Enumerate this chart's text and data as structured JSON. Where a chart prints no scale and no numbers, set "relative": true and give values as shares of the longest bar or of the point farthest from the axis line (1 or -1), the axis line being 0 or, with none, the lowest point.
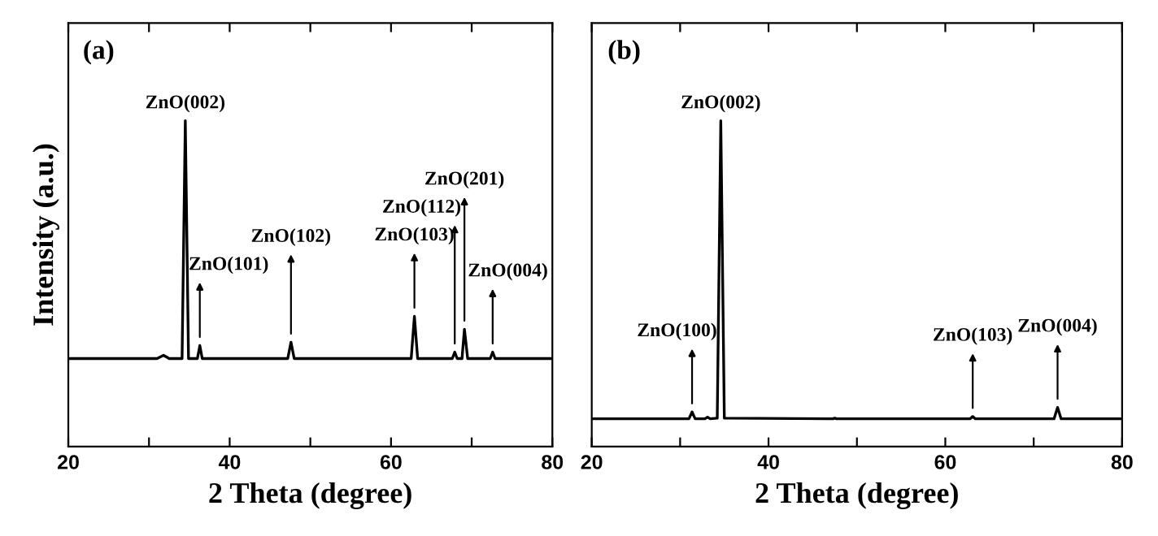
{
  "chart_data": [
    {
      "type": "line",
      "title": "(a)",
      "xlabel": "2 Theta (degree)",
      "ylabel": "Intensity (a.u.)",
      "relative": true,
      "tick_labels": "x",
      "xlim": [
        20,
        80
      ],
      "xticks": [
        20,
        {
          "value": 30,
          "label": null
        },
        40,
        {
          "value": 50,
          "label": null
        },
        60,
        {
          "value": 70,
          "label": null
        },
        80
      ],
      "x": [
        20,
        31,
        31.8,
        32.5,
        34.1,
        34.5,
        34.9,
        36.0,
        36.3,
        36.6,
        47.2,
        47.6,
        48.0,
        62.5,
        62.9,
        63.3,
        67.6,
        67.9,
        68.2,
        68.8,
        69.1,
        69.5,
        72.3,
        72.6,
        72.9,
        80
      ],
      "series": [
        {
          "color": "#000000",
          "values": [
            0.27,
            0.27,
            0.28,
            0.27,
            0.27,
            1.0,
            0.27,
            0.27,
            0.31,
            0.27,
            0.27,
            0.32,
            0.27,
            0.27,
            0.4,
            0.27,
            0.27,
            0.29,
            0.27,
            0.27,
            0.36,
            0.27,
            0.27,
            0.29,
            0.27,
            0.27
          ]
        }
      ],
      "annotations": [
        {
          "text": "ZnO(002)",
          "x": 34.5,
          "y": 1.0
        },
        {
          "text": "ZnO(101)",
          "x": 36.3,
          "y": 0.31
        },
        {
          "text": "ZnO(102)",
          "x": 47.6,
          "y": 0.32
        },
        {
          "text": "ZnO(103)",
          "x": 62.9,
          "y": 0.4
        },
        {
          "text": "ZnO(112)",
          "x": 67.9,
          "y": 0.29
        },
        {
          "text": "ZnO(201)",
          "x": 69.1,
          "y": 0.36
        },
        {
          "text": "ZnO(004)",
          "x": 72.6,
          "y": 0.29
        }
      ]
    },
    {
      "type": "line",
      "title": "(b)",
      "xlabel": "2 Theta (degree)",
      "relative": true,
      "tick_labels": "x",
      "xlim": [
        20,
        80
      ],
      "xticks": [
        20,
        {
          "value": 30,
          "label": null
        },
        40,
        {
          "value": 50,
          "label": null
        },
        60,
        {
          "value": 70,
          "label": null
        },
        80
      ],
      "x": [
        20,
        31.0,
        31.35,
        31.7,
        32.8,
        33.1,
        33.4,
        34.2,
        34.6,
        35.0,
        47.3,
        47.5,
        47.7,
        62.8,
        63.1,
        63.4,
        72.3,
        72.7,
        73.1,
        80
      ],
      "series": [
        {
          "color": "#000000",
          "values": [
            0.085,
            0.085,
            0.106,
            0.085,
            0.085,
            0.09,
            0.085,
            0.087,
            1.0,
            0.087,
            0.085,
            0.087,
            0.085,
            0.085,
            0.092,
            0.085,
            0.085,
            0.12,
            0.085,
            0.085
          ]
        }
      ],
      "annotations": [
        {
          "text": "ZnO(100)",
          "x": 31.35,
          "y": 0.106
        },
        {
          "text": "ZnO(002)",
          "x": 34.6,
          "y": 1.0
        },
        {
          "text": "ZnO(103)",
          "x": 63.1,
          "y": 0.092
        },
        {
          "text": "ZnO(004)",
          "x": 72.7,
          "y": 0.12
        }
      ]
    }
  ]
}
